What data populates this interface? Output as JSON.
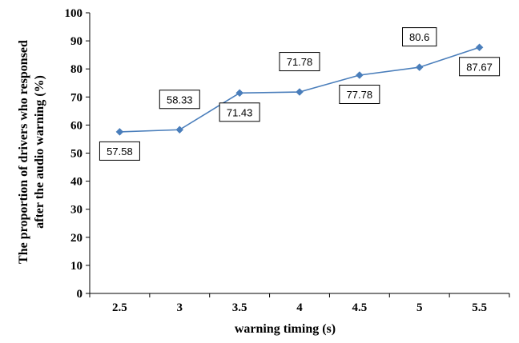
{
  "chart_data": {
    "type": "line",
    "xlabel": "warning timing (s)",
    "ylabel_lines": [
      "The proportion of drivers who responsed",
      "after the audio  warning (%)"
    ],
    "x_ticks": [
      "2.5",
      "3",
      "3.5",
      "4",
      "4.5",
      "5",
      "5.5"
    ],
    "y_ticks": [
      "0",
      "10",
      "20",
      "30",
      "40",
      "50",
      "60",
      "70",
      "80",
      "90",
      "100"
    ],
    "ylim": [
      0,
      100
    ],
    "grid": false,
    "legend": "none",
    "series": [
      {
        "x": [
          2.5,
          3,
          3.5,
          4,
          4.5,
          5,
          5.5
        ],
        "values": [
          57.58,
          58.33,
          71.43,
          71.78,
          77.78,
          80.6,
          87.67
        ],
        "labels": [
          "57.58",
          "58.33",
          "71.43",
          "71.78",
          "77.78",
          "80.6",
          "87.67"
        ],
        "label_side": [
          "below",
          "above",
          "below",
          "above",
          "below",
          "above",
          "below"
        ],
        "color": "#4a7ebb"
      }
    ]
  }
}
